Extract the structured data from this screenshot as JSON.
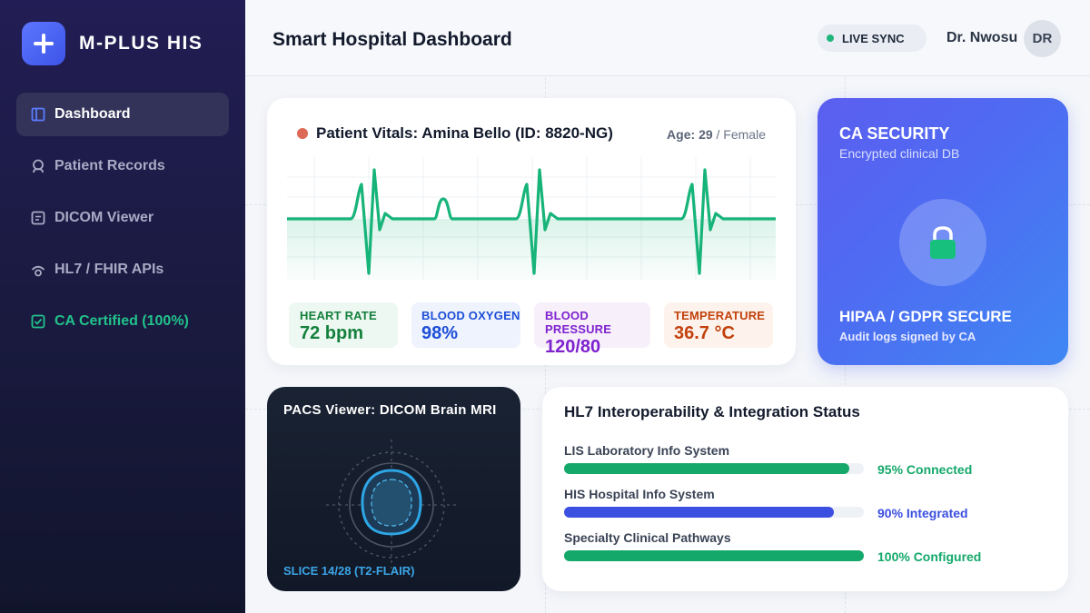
{
  "brand": {
    "name": "M-PLUS HIS"
  },
  "sidebar": {
    "items": [
      {
        "label": "Dashboard",
        "icon": "sidebar-panel-icon",
        "active": true
      },
      {
        "label": "Patient Records",
        "icon": "user-icon"
      },
      {
        "label": "DICOM Viewer",
        "icon": "document-icon"
      },
      {
        "label": "HL7 / FHIR APIs",
        "icon": "signal-icon"
      },
      {
        "label": "CA Certified (100%)",
        "icon": "check-square-icon"
      }
    ]
  },
  "header": {
    "title": "Smart Hospital Dashboard",
    "sync_label": "LIVE SYNC",
    "user_name": "Dr. Nwosu",
    "user_initials": "DR"
  },
  "vitals": {
    "title": "Patient Vitals: Amina Bello (ID: 8820-NG)",
    "age_label": "Age:",
    "age_value": "29",
    "sex": "/ Female",
    "tiles": [
      {
        "label": "HEART RATE",
        "value": "72 bpm",
        "color": "#15803d",
        "bg": "#ecf8f1"
      },
      {
        "label": "BLOOD OXYGEN",
        "value": "98%",
        "color": "#1d4ed8",
        "bg": "#eef3fd"
      },
      {
        "label": "BLOOD PRESSURE",
        "value": "120/80",
        "color": "#7e22ce",
        "bg": "#f7f0fb"
      },
      {
        "label": "TEMPERATURE",
        "value": "36.7 °C",
        "color": "#c2410c",
        "bg": "#fdf3ec"
      }
    ],
    "ecg_color": "#17b47a"
  },
  "security": {
    "title": "CA SECURITY",
    "subtitle": "Encrypted clinical DB",
    "badge": "HIPAA / GDPR SECURE",
    "note": "Audit logs signed by CA",
    "lock_color": "#18c07e"
  },
  "pacs": {
    "title": "PACS Viewer: DICOM Brain MRI",
    "slice": "SLICE 14/28 (T2-FLAIR)"
  },
  "hl7": {
    "title": "HL7 Interoperability & Integration Status",
    "rows": [
      {
        "label": "LIS Laboratory Info System",
        "status": "95% Connected",
        "progress": 95,
        "color": "#14a86a"
      },
      {
        "label": "HIS Hospital Info System",
        "status": "90% Integrated",
        "progress": 90,
        "color": "#3b4fe0"
      },
      {
        "label": "Specialty Clinical Pathways",
        "status": "100% Configured",
        "progress": 100,
        "color": "#14a86a"
      }
    ]
  }
}
